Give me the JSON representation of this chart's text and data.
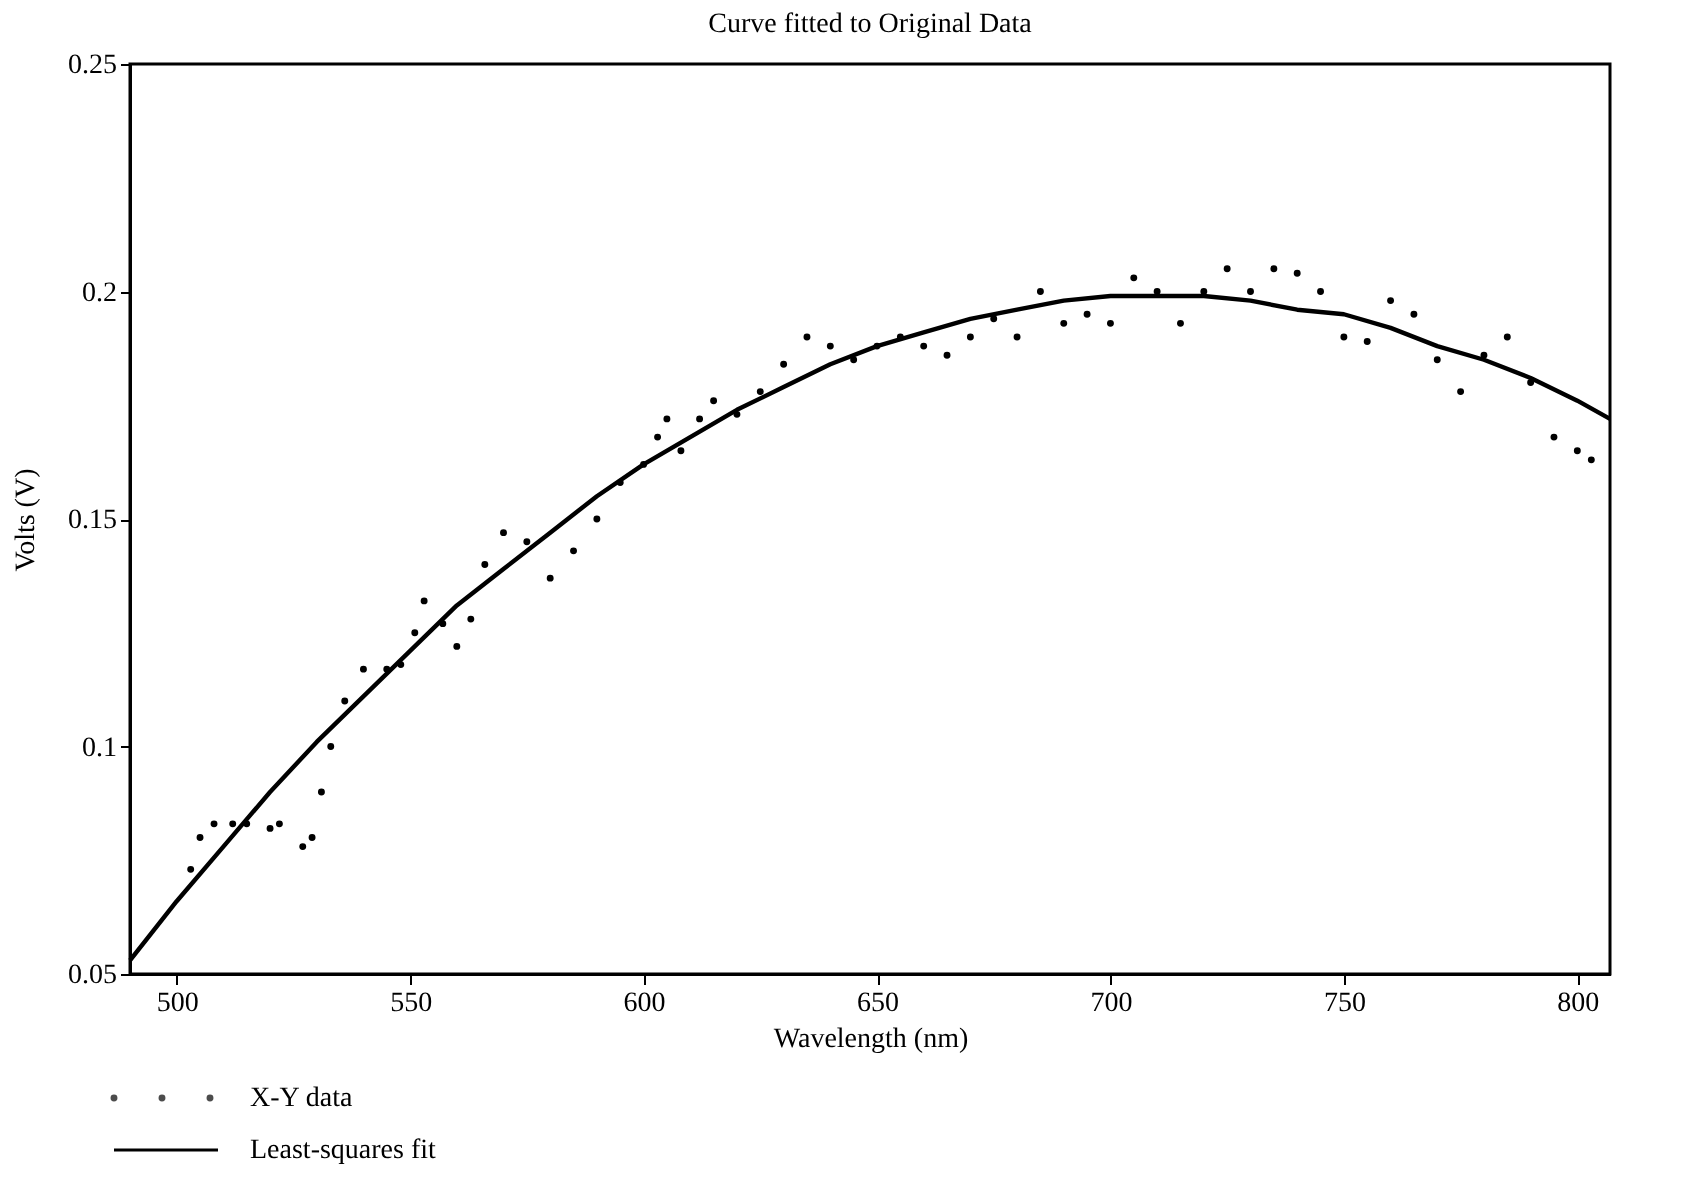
{
  "chart_data": {
    "type": "scatter",
    "title": "Curve fitted to Original Data",
    "xlabel": "Wavelength (nm)",
    "ylabel": "Volts (V)",
    "xlim": [
      490,
      807
    ],
    "xticks": [
      500,
      550,
      600,
      650,
      700,
      750,
      800
    ],
    "ylim": [
      0.05,
      0.25
    ],
    "yticks": [
      0.05,
      0.1,
      0.15,
      0.2,
      0.25
    ],
    "grid": false,
    "legend": "bottom left",
    "series": [
      {
        "name": "X-Y data",
        "marker": "circle",
        "color": "#000000",
        "x": [
          503,
          505,
          508,
          512,
          515,
          520,
          522,
          527,
          529,
          531,
          533,
          536,
          540,
          545,
          548,
          551,
          553,
          557,
          560,
          563,
          566,
          570,
          575,
          580,
          585,
          590,
          595,
          600,
          603,
          605,
          608,
          612,
          615,
          620,
          625,
          630,
          635,
          640,
          645,
          650,
          655,
          660,
          665,
          670,
          675,
          680,
          685,
          690,
          695,
          700,
          705,
          710,
          715,
          720,
          725,
          730,
          735,
          740,
          745,
          750,
          755,
          760,
          765,
          770,
          775,
          780,
          785,
          790,
          795,
          800,
          803
        ],
        "values": [
          0.073,
          0.08,
          0.083,
          0.083,
          0.083,
          0.082,
          0.083,
          0.078,
          0.08,
          0.09,
          0.1,
          0.11,
          0.117,
          0.117,
          0.118,
          0.125,
          0.132,
          0.127,
          0.122,
          0.128,
          0.14,
          0.147,
          0.145,
          0.137,
          0.143,
          0.15,
          0.158,
          0.162,
          0.168,
          0.172,
          0.165,
          0.172,
          0.176,
          0.173,
          0.178,
          0.184,
          0.19,
          0.188,
          0.185,
          0.188,
          0.19,
          0.188,
          0.186,
          0.19,
          0.194,
          0.19,
          0.2,
          0.193,
          0.195,
          0.193,
          0.203,
          0.2,
          0.193,
          0.2,
          0.205,
          0.2,
          0.205,
          0.204,
          0.2,
          0.19,
          0.189,
          0.198,
          0.195,
          0.185,
          0.178,
          0.186,
          0.19,
          0.18,
          0.168,
          0.165,
          0.163
        ]
      },
      {
        "name": "Least-squares fit",
        "type": "line",
        "marker": "none",
        "line_style": "solid",
        "color": "#000000",
        "x": [
          490,
          500,
          510,
          520,
          530,
          540,
          550,
          560,
          570,
          580,
          590,
          600,
          610,
          620,
          630,
          640,
          650,
          660,
          670,
          680,
          690,
          700,
          712,
          720,
          730,
          740,
          750,
          760,
          770,
          780,
          790,
          800,
          807
        ],
        "values": [
          0.053,
          0.066,
          0.078,
          0.09,
          0.101,
          0.111,
          0.121,
          0.131,
          0.139,
          0.147,
          0.155,
          0.162,
          0.168,
          0.174,
          0.179,
          0.184,
          0.188,
          0.191,
          0.194,
          0.196,
          0.198,
          0.199,
          0.199,
          0.199,
          0.198,
          0.196,
          0.195,
          0.192,
          0.188,
          0.185,
          0.181,
          0.176,
          0.172
        ]
      }
    ]
  }
}
